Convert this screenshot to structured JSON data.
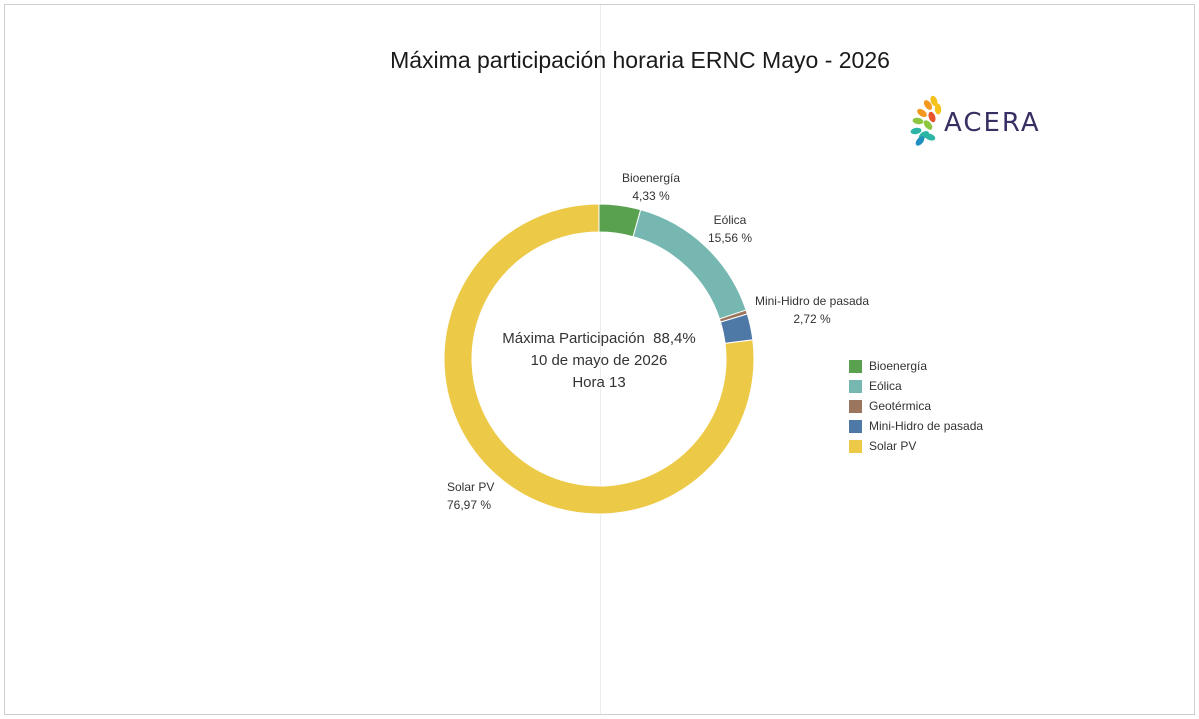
{
  "chart_data": {
    "type": "pie",
    "title": "Máxima participación horaria ERNC Mayo - 2026",
    "slices": [
      {
        "label": "Bioenergía",
        "value": 4.33,
        "value_text": "4,33 %",
        "color": "#59a14f",
        "labeled": true
      },
      {
        "label": "Eólica",
        "value": 15.56,
        "value_text": "15,56 %",
        "color": "#76b7b2",
        "labeled": true
      },
      {
        "label": "Geotérmica",
        "value": 0.42,
        "value_text": "",
        "color": "#9c755f",
        "labeled": false
      },
      {
        "label": "Mini-Hidro de pasada",
        "value": 2.72,
        "value_text": "2,72 %",
        "color": "#4e79a7",
        "labeled": true
      },
      {
        "label": "Solar PV",
        "value": 76.97,
        "value_text": "76,97 %",
        "color": "#edc948",
        "labeled": true
      }
    ],
    "center_text": [
      "Máxima Participación  88,4%",
      "10 de mayo de 2026",
      "Hora 13"
    ],
    "legend": [
      "Bioenergía",
      "Eólica",
      "Geotérmica",
      "Mini-Hidro de pasada",
      "Solar PV"
    ],
    "legend_position": "right"
  },
  "logo": {
    "text": "ACERA",
    "petal_colors": [
      "#f6c21a",
      "#f39a1e",
      "#e8542b",
      "#8cc63f",
      "#2bb5a5",
      "#1f8fbf"
    ]
  }
}
